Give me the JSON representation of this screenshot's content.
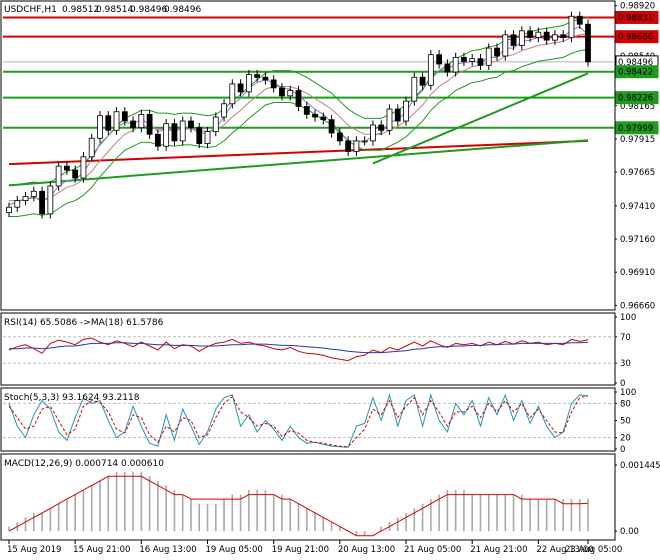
{
  "chart_data": [
    {
      "type": "candlestick",
      "pane": "price",
      "title": "USDCHF,H1",
      "ohlc": [
        "0.98512",
        "0.98514",
        "0.98496",
        "0.98496"
      ],
      "ylim": [
        0.9664,
        0.9894
      ],
      "ticks": [
        0.9892,
        0.9854,
        0.98165,
        0.97915,
        0.97665,
        0.9741,
        0.9716,
        0.9691,
        0.9666
      ],
      "tick_labels": [
        "0.98920",
        "0.98540",
        "0.98165",
        "0.97915",
        "0.97665",
        "0.97410",
        "0.97160",
        "0.96910",
        "0.96660"
      ],
      "price_tags": [
        {
          "value": 0.98831,
          "label": "0.98831",
          "color": "#d40000"
        },
        {
          "value": 0.98686,
          "label": "0.98686",
          "color": "#d40000"
        },
        {
          "value": 0.98496,
          "label": "0.98496",
          "color": "#ffffff"
        },
        {
          "value": 0.98422,
          "label": "0.98422",
          "color": "#1e9a1e"
        },
        {
          "value": 0.98226,
          "label": "0.98226",
          "color": "#1e9a1e"
        },
        {
          "value": 0.97999,
          "label": "0.97999",
          "color": "#1e9a1e"
        }
      ],
      "horizontal_levels": [
        {
          "value": 0.98831,
          "color": "#d40000"
        },
        {
          "value": 0.98686,
          "color": "#d40000"
        },
        {
          "value": 0.98422,
          "color": "#1e9a1e"
        },
        {
          "value": 0.98226,
          "color": "#1e9a1e"
        },
        {
          "value": 0.97999,
          "color": "#1e9a1e"
        }
      ],
      "trendlines": [
        {
          "color": "#d40000",
          "x": [
            0,
            70
          ],
          "y": [
            0.97725,
            0.979
          ]
        },
        {
          "color": "#1e9a1e",
          "x": [
            0,
            70
          ],
          "y": [
            0.97565,
            0.97905
          ]
        },
        {
          "color": "#1e9a1e",
          "x": [
            44,
            70
          ],
          "y": [
            0.9773,
            0.9841
          ]
        }
      ],
      "close": [
        0.974,
        0.9745,
        0.9748,
        0.9752,
        0.9735,
        0.9756,
        0.9771,
        0.9768,
        0.9762,
        0.9778,
        0.9792,
        0.9809,
        0.9798,
        0.9812,
        0.9805,
        0.98,
        0.981,
        0.9795,
        0.9786,
        0.9803,
        0.979,
        0.9805,
        0.98,
        0.9788,
        0.9797,
        0.9808,
        0.9818,
        0.9833,
        0.9827,
        0.984,
        0.9838,
        0.9836,
        0.983,
        0.9824,
        0.9828,
        0.9816,
        0.981,
        0.9808,
        0.9806,
        0.9796,
        0.979,
        0.9782,
        0.979,
        0.979,
        0.9802,
        0.9798,
        0.9814,
        0.9805,
        0.982,
        0.9838,
        0.9832,
        0.9855,
        0.9848,
        0.9842,
        0.9853,
        0.985,
        0.9852,
        0.9847,
        0.986,
        0.9854,
        0.987,
        0.9862,
        0.9873,
        0.9868,
        0.9872,
        0.9866,
        0.987,
        0.9868,
        0.9884,
        0.9878,
        0.98496
      ],
      "ma_fast": [
        0.9742,
        0.9744,
        0.9746,
        0.9748,
        0.9744,
        0.9748,
        0.9756,
        0.976,
        0.9761,
        0.9766,
        0.9776,
        0.9788,
        0.9794,
        0.98,
        0.9804,
        0.9803,
        0.9806,
        0.9803,
        0.9797,
        0.9799,
        0.9797,
        0.98,
        0.98,
        0.9796,
        0.9796,
        0.98,
        0.9808,
        0.9818,
        0.9822,
        0.983,
        0.9834,
        0.9836,
        0.9834,
        0.983,
        0.9829,
        0.9824,
        0.9819,
        0.9814,
        0.981,
        0.9804,
        0.9797,
        0.979,
        0.979,
        0.9789,
        0.9794,
        0.9796,
        0.9804,
        0.9806,
        0.9812,
        0.9822,
        0.9828,
        0.9839,
        0.9843,
        0.9844,
        0.9848,
        0.9849,
        0.985,
        0.9849,
        0.9853,
        0.9853,
        0.986,
        0.986,
        0.9865,
        0.9866,
        0.9868,
        0.9867,
        0.9868,
        0.9868,
        0.9874,
        0.9876,
        0.987
      ],
      "ma_slow": [
        0.9745,
        0.9745,
        0.9746,
        0.9747,
        0.9746,
        0.9747,
        0.9751,
        0.9755,
        0.9757,
        0.9761,
        0.9767,
        0.9775,
        0.9782,
        0.9789,
        0.9795,
        0.9798,
        0.9801,
        0.9801,
        0.9799,
        0.9799,
        0.9798,
        0.9799,
        0.9799,
        0.9798,
        0.9797,
        0.9798,
        0.9802,
        0.9808,
        0.9813,
        0.9819,
        0.9824,
        0.9829,
        0.9831,
        0.9831,
        0.9831,
        0.9829,
        0.9826,
        0.9822,
        0.9818,
        0.9814,
        0.9808,
        0.9802,
        0.9798,
        0.9795,
        0.9795,
        0.9795,
        0.9798,
        0.9801,
        0.9805,
        0.9811,
        0.9817,
        0.9825,
        0.9831,
        0.9835,
        0.984,
        0.9843,
        0.9846,
        0.9847,
        0.9849,
        0.985,
        0.9854,
        0.9855,
        0.9858,
        0.986,
        0.9862,
        0.9863,
        0.9864,
        0.9865,
        0.9868,
        0.987,
        0.9871
      ]
    },
    {
      "type": "line",
      "pane": "rsi",
      "title": "RSI(14) 65.5086  ->MA(18) 61.5786",
      "ylim": [
        0,
        100
      ],
      "ticks": [
        100,
        70,
        30,
        0
      ],
      "tick_labels": [
        "100",
        "70",
        "30",
        "0"
      ],
      "levels": [
        70,
        30
      ],
      "series": [
        {
          "color": "#d40000",
          "values": [
            50,
            55,
            58,
            52,
            45,
            60,
            65,
            62,
            58,
            66,
            68,
            62,
            58,
            64,
            60,
            55,
            62,
            56,
            50,
            62,
            52,
            58,
            56,
            48,
            55,
            60,
            62,
            66,
            60,
            62,
            58,
            56,
            52,
            50,
            54,
            48,
            45,
            44,
            42,
            38,
            36,
            34,
            40,
            42,
            50,
            46,
            54,
            50,
            56,
            62,
            56,
            64,
            58,
            54,
            60,
            58,
            60,
            56,
            62,
            58,
            63,
            59,
            64,
            60,
            62,
            58,
            60,
            58,
            66,
            63,
            65.5
          ]
        },
        {
          "color": "#1e3aa8",
          "values": [
            52,
            52,
            53,
            53,
            52,
            53,
            55,
            56,
            56,
            58,
            60,
            60,
            60,
            61,
            61,
            60,
            60,
            59,
            58,
            58,
            57,
            57,
            57,
            56,
            56,
            56,
            57,
            58,
            58,
            59,
            59,
            59,
            58,
            57,
            57,
            56,
            55,
            54,
            53,
            51,
            50,
            48,
            47,
            46,
            46,
            46,
            47,
            48,
            49,
            51,
            52,
            54,
            55,
            55,
            56,
            56,
            57,
            57,
            58,
            58,
            59,
            59,
            60,
            60,
            60,
            60,
            60,
            60,
            61,
            61,
            61.6
          ]
        }
      ]
    },
    {
      "type": "line",
      "pane": "stoch",
      "title": "Stoch(5,3,3) 93.1624 93.2118",
      "ylim": [
        0,
        100
      ],
      "ticks": [
        100,
        80,
        50,
        20,
        0
      ],
      "tick_labels": [
        "100",
        "80",
        "50",
        "20",
        "0"
      ],
      "levels": [
        80,
        20
      ],
      "series": [
        {
          "color": "#1e9ab4",
          "values": [
            80,
            40,
            20,
            60,
            85,
            70,
            30,
            15,
            55,
            90,
            80,
            85,
            50,
            20,
            30,
            75,
            40,
            10,
            5,
            60,
            15,
            70,
            40,
            8,
            30,
            70,
            90,
            95,
            40,
            60,
            30,
            50,
            35,
            15,
            40,
            20,
            10,
            12,
            8,
            5,
            4,
            3,
            40,
            45,
            90,
            50,
            95,
            40,
            85,
            95,
            40,
            95,
            50,
            30,
            80,
            60,
            85,
            40,
            90,
            60,
            95,
            50,
            85,
            45,
            75,
            40,
            20,
            30,
            80,
            95,
            93.2
          ]
        },
        {
          "color": "#d40000",
          "values": [
            75,
            55,
            35,
            40,
            70,
            75,
            50,
            25,
            35,
            75,
            85,
            82,
            65,
            35,
            28,
            60,
            55,
            25,
            12,
            40,
            30,
            55,
            50,
            20,
            25,
            55,
            80,
            92,
            65,
            55,
            40,
            45,
            40,
            22,
            32,
            28,
            15,
            12,
            10,
            7,
            5,
            4,
            20,
            35,
            70,
            60,
            85,
            55,
            75,
            90,
            60,
            85,
            65,
            40,
            65,
            65,
            75,
            55,
            80,
            65,
            85,
            65,
            80,
            55,
            70,
            50,
            30,
            28,
            65,
            90,
            93.2
          ]
        }
      ]
    },
    {
      "type": "bar+line",
      "pane": "macd",
      "title": "MACD(12,26,9) 0.000714 0.000610",
      "ylim": [
        -0.00015,
        0.0016
      ],
      "ticks": [
        0.001445,
        0.0
      ],
      "tick_labels": [
        "0.001445",
        "0.00"
      ],
      "histogram": [
        0.0001,
        0.0002,
        0.0003,
        0.0004,
        0.0004,
        0.0005,
        0.0006,
        0.0007,
        0.0008,
        0.0009,
        0.001,
        0.0011,
        0.0012,
        0.0013,
        0.0013,
        0.0013,
        0.0013,
        0.0012,
        0.0011,
        0.001,
        0.0009,
        0.0008,
        0.0007,
        0.0006,
        0.0006,
        0.0006,
        0.0007,
        0.0008,
        0.0008,
        0.0009,
        0.0009,
        0.0009,
        0.0008,
        0.0008,
        0.0007,
        0.0006,
        0.0005,
        0.0004,
        0.0003,
        0.0002,
        0.0001,
        0.0,
        -0.0001,
        -0.0001,
        0.0,
        0.0001,
        0.0002,
        0.0003,
        0.0004,
        0.0005,
        0.0006,
        0.0007,
        0.0008,
        0.0009,
        0.0009,
        0.0009,
        0.0008,
        0.0008,
        0.0008,
        0.0008,
        0.0008,
        0.0008,
        0.0008,
        0.0007,
        0.0007,
        0.0007,
        0.0007,
        0.0007,
        0.0007,
        0.0007,
        0.000714
      ],
      "signal": [
        0.0,
        0.0001,
        0.0002,
        0.0003,
        0.0004,
        0.0005,
        0.0006,
        0.0007,
        0.0008,
        0.0009,
        0.001,
        0.0011,
        0.0012,
        0.0012,
        0.0012,
        0.0012,
        0.0012,
        0.0011,
        0.001,
        0.0009,
        0.0008,
        0.0008,
        0.0007,
        0.0007,
        0.0007,
        0.0007,
        0.0007,
        0.0007,
        0.0007,
        0.0008,
        0.0008,
        0.0008,
        0.0008,
        0.0007,
        0.0007,
        0.0006,
        0.0005,
        0.0004,
        0.0003,
        0.0002,
        0.0001,
        0.0,
        -0.0001,
        -0.0001,
        -0.0001,
        0.0,
        0.0001,
        0.0002,
        0.0003,
        0.0004,
        0.0005,
        0.0006,
        0.0007,
        0.0008,
        0.0008,
        0.0008,
        0.0008,
        0.0008,
        0.0008,
        0.0008,
        0.0008,
        0.0008,
        0.0007,
        0.0007,
        0.0007,
        0.0007,
        0.0007,
        0.0006,
        0.0006,
        0.0006,
        0.00061
      ]
    }
  ],
  "time_axis": [
    {
      "index": 0,
      "label": "15 Aug 2019"
    },
    {
      "index": 8,
      "label": "15 Aug 21:00"
    },
    {
      "index": 16,
      "label": "16 Aug 13:00"
    },
    {
      "index": 24,
      "label": "19 Aug 05:00"
    },
    {
      "index": 32,
      "label": "19 Aug 21:00"
    },
    {
      "index": 40,
      "label": "20 Aug 13:00"
    },
    {
      "index": 48,
      "label": "21 Aug 05:00"
    },
    {
      "index": 56,
      "label": "21 Aug 21:00"
    },
    {
      "index": 64,
      "label": "22 Aug 13:00"
    },
    {
      "index": 70,
      "label": "23 Aug 05:00"
    }
  ],
  "colors": {
    "bullish": "#ffffff",
    "bearish": "#000000",
    "bands": "#1e9a1e",
    "axis": "#000000"
  }
}
